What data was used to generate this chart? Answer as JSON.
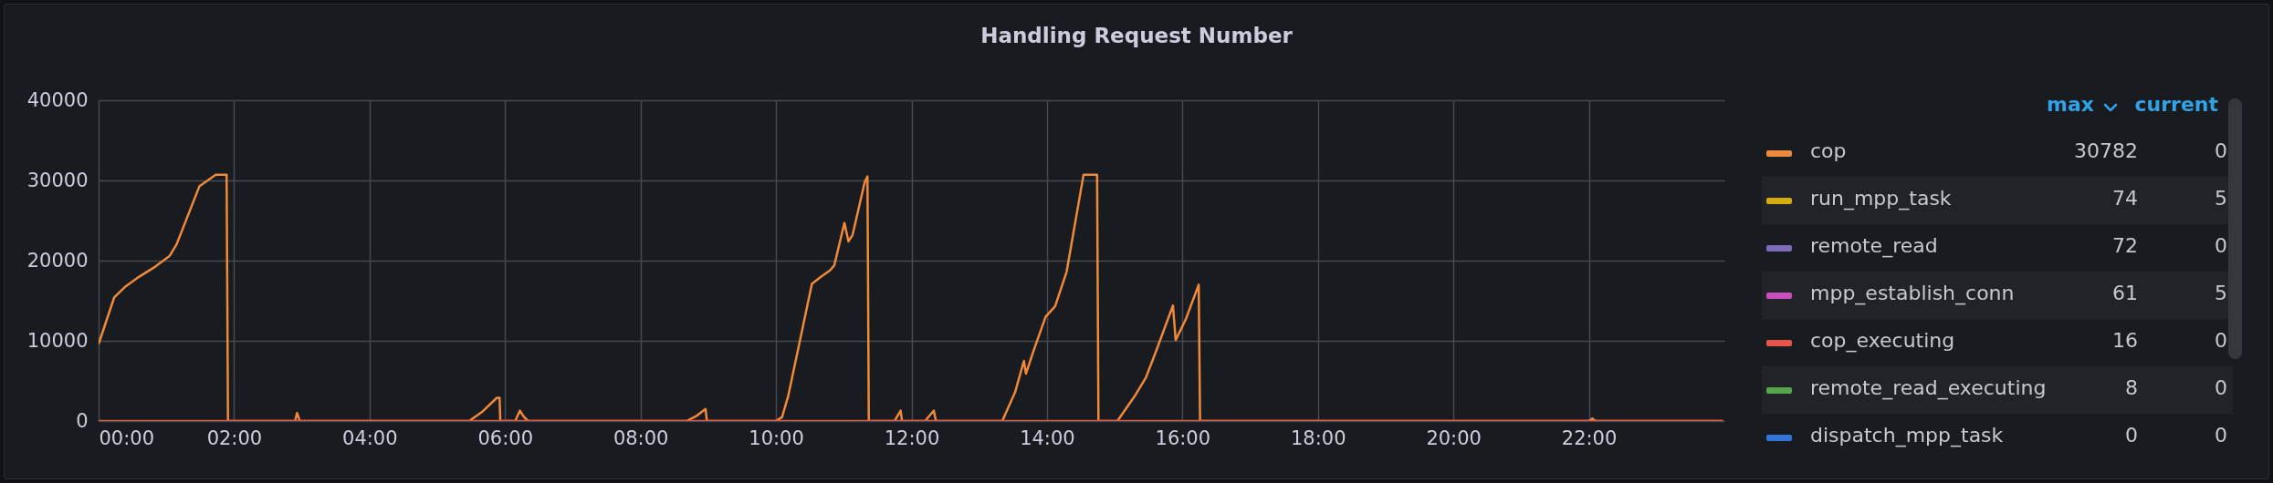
{
  "chart_data": {
    "type": "line",
    "title": "Handling Request Number",
    "xlim": [
      0,
      24
    ],
    "ylim": [
      0,
      40000
    ],
    "xticks": [
      {
        "value": 0,
        "label": "00:00"
      },
      {
        "value": 2,
        "label": "02:00"
      },
      {
        "value": 4,
        "label": "04:00"
      },
      {
        "value": 6,
        "label": "06:00"
      },
      {
        "value": 8,
        "label": "08:00"
      },
      {
        "value": 10,
        "label": "10:00"
      },
      {
        "value": 12,
        "label": "12:00"
      },
      {
        "value": 14,
        "label": "14:00"
      },
      {
        "value": 16,
        "label": "16:00"
      },
      {
        "value": 18,
        "label": "18:00"
      },
      {
        "value": 20,
        "label": "20:00"
      },
      {
        "value": 22,
        "label": "22:00"
      }
    ],
    "yticks": [
      0,
      10000,
      20000,
      30000,
      40000
    ],
    "grid": true,
    "legend": "right",
    "annotations": [
      "max",
      "current",
      "30782",
      "0",
      "74",
      "5",
      "72",
      "0",
      "61",
      "5",
      "16",
      "0",
      "8",
      "0",
      "0",
      "0"
    ],
    "series": [
      {
        "name": "cop",
        "color": "#f08a3a",
        "x": [
          0,
          0.23,
          0.4,
          0.6,
          0.81,
          1.05,
          1.15,
          1.49,
          1.73,
          1.89,
          1.91,
          2.9,
          2.93,
          2.97,
          5.47,
          5.67,
          5.88,
          5.92,
          5.93,
          6.15,
          6.22,
          6.27,
          6.34,
          8.68,
          8.82,
          8.96,
          8.98,
          10.0,
          10.09,
          10.18,
          10.53,
          10.65,
          10.8,
          10.86,
          11.01,
          11.07,
          11.13,
          11.31,
          11.35,
          11.37,
          11.75,
          11.84,
          11.86,
          12.2,
          12.33,
          12.36,
          13.34,
          13.53,
          13.66,
          13.69,
          13.8,
          13.98,
          14.12,
          14.29,
          14.54,
          14.74,
          14.76,
          15.04,
          15.31,
          15.46,
          15.61,
          15.86,
          15.9,
          16.05,
          16.24,
          16.26,
          22.0,
          22.05,
          22.1,
          23.98
        ],
        "values": [
          9600,
          15400,
          16800,
          18000,
          19100,
          20600,
          22000,
          29300,
          30700,
          30700,
          0,
          0,
          1000,
          0,
          0,
          1200,
          2900,
          2900,
          0,
          0,
          1300,
          600,
          0,
          0,
          600,
          1500,
          0,
          0,
          500,
          3100,
          17100,
          17900,
          18800,
          19400,
          24700,
          22400,
          23200,
          29800,
          30500,
          0,
          0,
          1300,
          0,
          0,
          1300,
          0,
          0,
          3600,
          7500,
          5900,
          8700,
          13000,
          14300,
          18600,
          30700,
          30700,
          0,
          0,
          3300,
          5400,
          8700,
          14400,
          10100,
          12700,
          17000,
          0,
          0,
          300,
          0,
          0
        ]
      },
      {
        "name": "run_mpp_task",
        "color": "#d4ac0d",
        "values": [
          null
        ]
      },
      {
        "name": "remote_read",
        "color": "#7f6cb8",
        "values": [
          null
        ]
      },
      {
        "name": "mpp_establish_conn",
        "color": "#c94fc0",
        "values": [
          null
        ]
      },
      {
        "name": "cop_executing",
        "color": "#e8564a",
        "x": [
          0,
          23.98
        ],
        "values": [
          0,
          0
        ]
      },
      {
        "name": "remote_read_executing",
        "color": "#56a64b",
        "values": [
          null
        ]
      },
      {
        "name": "dispatch_mpp_task",
        "color": "#3274d9",
        "values": [
          null
        ]
      }
    ]
  }
}
